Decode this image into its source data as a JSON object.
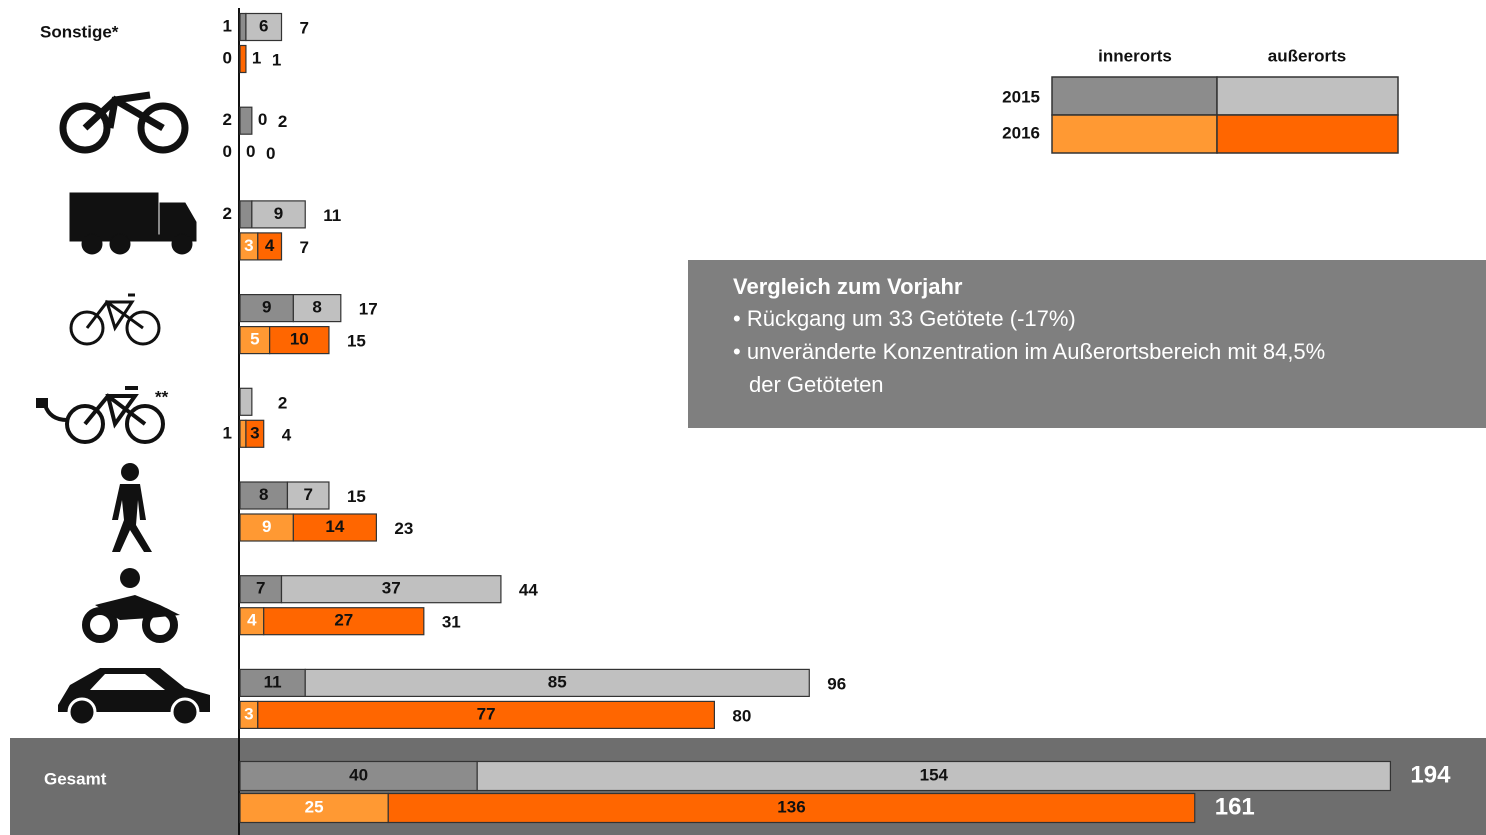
{
  "chart_data": {
    "type": "bar",
    "orientation": "horizontal",
    "stacked": true,
    "categories": [
      "Sonstige*",
      null,
      null,
      null,
      null,
      null,
      null,
      null,
      "Gesamt"
    ],
    "annotations": [
      "**"
    ],
    "groups": [
      "2015",
      "2016"
    ],
    "series": [
      {
        "name": "innerorts",
        "group": "2015",
        "color": "#8c8c8c",
        "values": [
          1,
          2,
          2,
          9,
          0,
          8,
          7,
          11,
          40
        ],
        "value_labels": [
          "1",
          "2",
          "2",
          "9",
          null,
          "8",
          "7",
          "11",
          "40"
        ]
      },
      {
        "name": "außerorts",
        "group": "2015",
        "color": "#c0c0c0",
        "values": [
          6,
          0,
          9,
          8,
          2,
          7,
          37,
          85,
          154
        ],
        "value_labels": [
          "6",
          "0",
          "9",
          "8",
          null,
          "7",
          "37",
          "85",
          "154"
        ]
      },
      {
        "name": "innerorts",
        "group": "2016",
        "color": "#ff9933",
        "values": [
          0,
          0,
          3,
          5,
          1,
          9,
          4,
          3,
          25
        ]
      },
      {
        "name": "außerorts",
        "group": "2016",
        "color": "#ff6600",
        "values": [
          1,
          0,
          4,
          10,
          3,
          14,
          27,
          77,
          136
        ]
      }
    ],
    "totals_2015": [
      7,
      2,
      11,
      17,
      2,
      15,
      44,
      96,
      194
    ],
    "totals_2016": [
      1,
      0,
      7,
      15,
      4,
      23,
      31,
      80,
      161
    ],
    "xlim": [
      0,
      200
    ],
    "legend": "top-right",
    "textbox": {
      "title": "Vergleich zum Vorjahr",
      "bullets": [
        "• Rückgang um 33 Getötete (-17%)",
        "• unveränderte Konzentration im Außerortsbereich mit 84,5%",
        "der Getöteten"
      ]
    }
  }
}
